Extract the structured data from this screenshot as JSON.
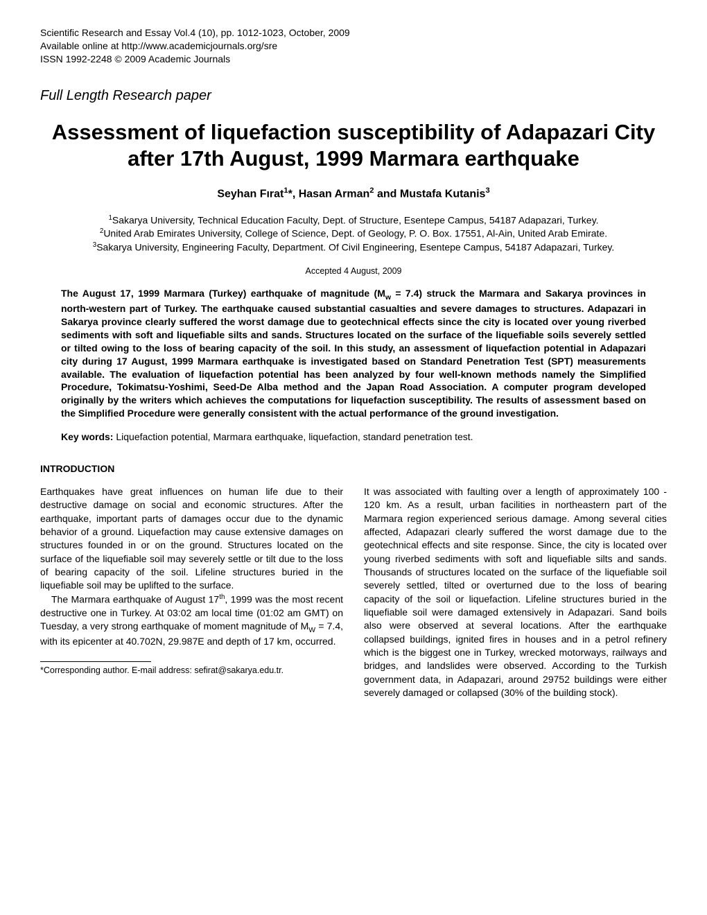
{
  "header": {
    "journal": "Scientific Research and Essay Vol.4 (10), pp. 1012-1023, October, 2009",
    "availability": "Available online at http://www.academicjournals.org/sre",
    "issn": "ISSN 1992-2248 © 2009 Academic Journals"
  },
  "paperType": "Full Length Research paper",
  "title": "Assessment of liquefaction susceptibility of Adapazari City after 17th August, 1999 Marmara earthquake",
  "authors": {
    "a1_name": "Seyhan Fırat",
    "a1_sup": "1",
    "a1_mark": "*, ",
    "a2_name": "Hasan Arman",
    "a2_sup": "2",
    "conj": " and ",
    "a3_name": "Mustafa Kutanis",
    "a3_sup": "3"
  },
  "affiliations": {
    "aff1_sup": "1",
    "aff1": "Sakarya University, Technical Education Faculty, Dept. of Structure, Esentepe Campus, 54187 Adapazari, Turkey.",
    "aff2_sup": "2",
    "aff2": "United Arab Emirates University, College of Science, Dept. of Geology, P. O. Box. 17551, Al-Ain, United Arab Emirate.",
    "aff3_sup": "3",
    "aff3": "Sakarya University, Engineering Faculty, Department. Of Civil Engineering, Esentepe Campus, 54187 Adapazari, Turkey."
  },
  "accepted": "Accepted 4 August, 2009",
  "abstract": {
    "p1a": "The August 17, 1999 Marmara (Turkey) earthquake of magnitude (M",
    "p1sub": "w",
    "p1b": " = 7.4) struck the Marmara and Sakarya provinces in north-western part of Turkey. The earthquake caused substantial casualties and severe damages to structures. Adapazari in Sakarya province clearly suffered the worst damage due to geotechnical effects since the city is located over young riverbed sediments with soft and liquefiable silts and sands. Structures located on the surface of the liquefiable soils severely settled or tilted owing to the loss of bearing capacity of the soil. In this study, an assessment of liquefaction potential in Adapazari city during 17 August, 1999 Marmara earthquake is investigated based on Standard Penetration Test (SPT) measurements available. The evaluation of liquefaction potential has been analyzed by four well-known methods namely the Simplified Procedure, Tokimatsu-Yoshimi, Seed-De Alba method and the Japan Road Association. A computer program developed originally by the writers which achieves the computations for liquefaction susceptibility. The results of assessment based on the Simplified Procedure were generally consistent with the actual performance of the ground investigation."
  },
  "keywords": {
    "label": "Key words: ",
    "text": "Liquefaction potential, Marmara earthquake, liquefaction, standard penetration test."
  },
  "sectionHeading": "INTRODUCTION",
  "body": {
    "col1": {
      "p1": "Earthquakes have great influences on human life due to their destructive damage on social and economic structures. After the earthquake, important parts of damages occur due to the dynamic behavior of a ground. Liquefaction may cause extensive damages on structures founded in or on the ground. Structures located on the surface of the liquefiable soil may severely settle or tilt due to the loss of bearing capacity of the soil. Lifeline structures buried in the liquefiable soil may be uplifted to the surface.",
      "p2a": "The Marmara earthquake of August 17",
      "p2sup": "th",
      "p2b": ", 1999 was the most recent destructive one in Turkey. At 03:02 am local time (01:02 am GMT) on Tuesday, a very strong earthquake of moment magnitude of M",
      "p2sub": "W",
      "p2c": " = 7.4, with its epicenter at 40.702N, 29.987E  and  depth of  17 km,  occurred."
    },
    "col2": {
      "p1": "It was associated with faulting over a length of approximately 100 - 120 km. As a result, urban facilities in northeastern part of the Marmara region experienced serious damage. Among several cities affected, Adapazari clearly suffered the worst damage due to the geotechnical effects and site response. Since, the city is located over young riverbed sediments with soft and liquefiable silts and sands. Thousands of structures located on the surface of the liquefiable soil severely settled, tilted or overturned due to the loss of bearing capacity of the soil or liquefaction. Lifeline structures buried in the liquefiable soil were damaged extensively in Adapazari. Sand boils also were observed at several locations. After the earthquake collapsed buildings, ignited fires in houses and in a petrol refinery which is the biggest one in Turkey, wrecked motorways, railways and bridges, and landslides were observed. According to the Turkish government data, in Adapazari, around 29752 buildings were either severely damaged or collapsed (30% of the building stock)."
    }
  },
  "footnote": "*Corresponding author. E-mail address: sefirat@sakarya.edu.tr."
}
